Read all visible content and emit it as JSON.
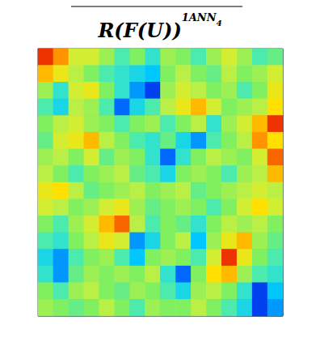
{
  "chart_data": {
    "type": "heatmap",
    "title": {
      "text": "R(F(U))",
      "superscript": "1",
      "index": "ANN",
      "index_subscript": "4"
    },
    "grid": true,
    "tick_labels": false,
    "color_range": [
      -1,
      1
    ],
    "cells": [
      [
        0.9,
        0.7,
        0.3,
        0.3,
        0.1,
        -0.2,
        0.0,
        -0.3,
        0.1,
        0.0,
        -0.2,
        0.1,
        0.3,
        0.1,
        -0.2,
        -0.1
      ],
      [
        0.6,
        0.4,
        0.2,
        0.0,
        -0.2,
        -0.3,
        -0.4,
        -0.5,
        0.0,
        0.2,
        0.0,
        -0.1,
        0.2,
        0.0,
        0.1,
        0.3
      ],
      [
        0.1,
        -0.3,
        0.3,
        0.4,
        0.0,
        -0.3,
        -0.6,
        -0.8,
        0.1,
        0.3,
        0.2,
        0.0,
        0.1,
        -0.2,
        0.0,
        0.4
      ],
      [
        -0.2,
        -0.4,
        0.2,
        0.1,
        -0.2,
        -0.7,
        -0.4,
        -0.2,
        0.2,
        0.4,
        0.6,
        0.3,
        0.0,
        0.1,
        0.2,
        0.5
      ],
      [
        0.0,
        0.2,
        0.3,
        0.1,
        0.0,
        -0.2,
        0.0,
        0.1,
        -0.2,
        0.0,
        0.2,
        -0.3,
        0.1,
        0.3,
        0.6,
        0.9
      ],
      [
        -0.1,
        0.3,
        0.4,
        0.6,
        0.2,
        0.0,
        -0.2,
        -0.3,
        -0.1,
        -0.4,
        -0.6,
        -0.2,
        0.0,
        0.2,
        0.7,
        0.5
      ],
      [
        0.1,
        0.2,
        0.0,
        0.3,
        -0.1,
        0.1,
        0.0,
        -0.3,
        -0.7,
        -0.3,
        0.0,
        0.2,
        0.1,
        0.0,
        0.3,
        0.8
      ],
      [
        0.2,
        0.0,
        -0.2,
        0.0,
        0.1,
        0.2,
        -0.1,
        -0.2,
        -0.4,
        0.0,
        0.1,
        0.0,
        -0.2,
        0.1,
        0.2,
        0.6
      ],
      [
        0.4,
        0.5,
        0.2,
        -0.1,
        0.0,
        0.1,
        0.2,
        0.0,
        0.1,
        0.2,
        -0.1,
        0.0,
        0.1,
        0.2,
        0.3,
        0.2
      ],
      [
        0.3,
        0.2,
        0.0,
        0.1,
        0.3,
        0.4,
        0.1,
        -0.1,
        0.0,
        0.1,
        0.0,
        -0.2,
        0.0,
        0.3,
        0.5,
        0.3
      ],
      [
        0.0,
        -0.2,
        0.1,
        0.3,
        0.6,
        0.8,
        0.2,
        -0.2,
        0.0,
        -0.1,
        -0.3,
        0.0,
        0.2,
        0.1,
        0.2,
        0.0
      ],
      [
        -0.2,
        -0.3,
        0.0,
        0.2,
        0.4,
        0.3,
        -0.6,
        -0.4,
        0.0,
        0.2,
        -0.5,
        0.1,
        0.4,
        0.6,
        0.1,
        -0.1
      ],
      [
        -0.4,
        -0.6,
        -0.2,
        0.0,
        0.1,
        -0.2,
        -0.5,
        0.0,
        0.1,
        0.0,
        -0.2,
        0.3,
        0.9,
        0.4,
        0.0,
        -0.2
      ],
      [
        -0.3,
        -0.6,
        -0.1,
        0.1,
        0.0,
        0.1,
        0.0,
        0.2,
        -0.3,
        -0.7,
        0.0,
        0.5,
        0.6,
        0.1,
        -0.2,
        -0.3
      ],
      [
        0.0,
        -0.2,
        0.1,
        0.2,
        0.0,
        -0.1,
        0.1,
        0.0,
        -0.2,
        -0.4,
        0.1,
        0.2,
        0.0,
        -0.3,
        -0.8,
        -0.5
      ],
      [
        0.1,
        0.0,
        -0.1,
        0.0,
        0.2,
        0.0,
        -0.2,
        0.1,
        0.0,
        0.0,
        0.2,
        0.0,
        -0.2,
        -0.4,
        -0.8,
        -0.6
      ]
    ]
  }
}
